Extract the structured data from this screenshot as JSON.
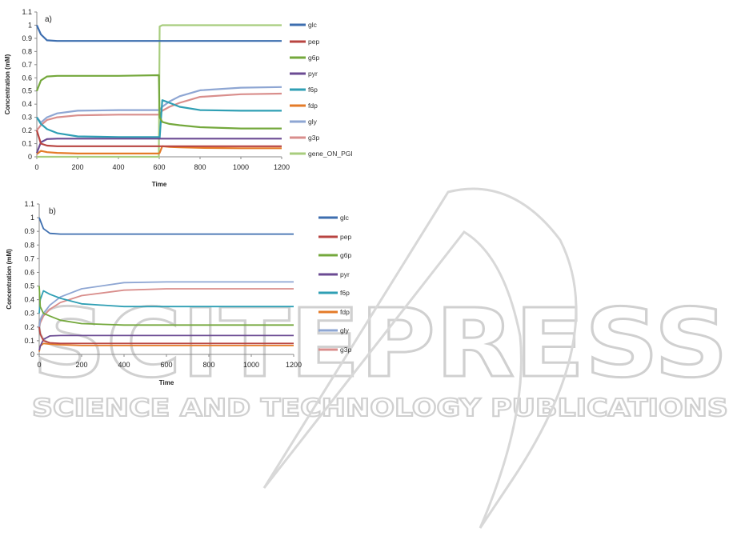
{
  "watermark": {
    "brand": "SCITEPRESS",
    "tagline": "SCIENCE AND TECHNOLOGY PUBLICATIONS"
  },
  "chart_data": [
    {
      "type": "line",
      "panel_label": "a)",
      "xlabel": "Time",
      "ylabel": "Concentration (mM)",
      "xlim": [
        0,
        1200
      ],
      "ylim": [
        0,
        1.1
      ],
      "xticks": [
        0,
        200,
        400,
        600,
        800,
        1000,
        1200
      ],
      "yticks": [
        0,
        0.1,
        0.2,
        0.3,
        0.4,
        0.5,
        0.6,
        0.7,
        0.8,
        0.9,
        1,
        1.1
      ],
      "grid": false,
      "legend_position": "right",
      "x": [
        0,
        20,
        50,
        100,
        200,
        400,
        598,
        602,
        615,
        650,
        700,
        800,
        1000,
        1200
      ],
      "series": [
        {
          "name": "glc",
          "color": "#3d6eaf",
          "values": [
            1,
            0.93,
            0.885,
            0.88,
            0.88,
            0.88,
            0.88,
            0.88,
            0.88,
            0.88,
            0.88,
            0.88,
            0.88,
            0.88
          ]
        },
        {
          "name": "pep",
          "color": "#b84441",
          "values": [
            0.2,
            0.1,
            0.085,
            0.08,
            0.08,
            0.08,
            0.08,
            0.08,
            0.08,
            0.08,
            0.08,
            0.08,
            0.08,
            0.08
          ]
        },
        {
          "name": "g6p",
          "color": "#74a83c",
          "values": [
            0.5,
            0.58,
            0.61,
            0.615,
            0.615,
            0.615,
            0.62,
            0.3,
            0.265,
            0.25,
            0.24,
            0.225,
            0.215,
            0.215
          ]
        },
        {
          "name": "pyr",
          "color": "#6b4b93",
          "values": [
            0.03,
            0.11,
            0.135,
            0.138,
            0.138,
            0.138,
            0.138,
            0.138,
            0.138,
            0.138,
            0.138,
            0.138,
            0.138,
            0.138
          ]
        },
        {
          "name": "f6p",
          "color": "#2f9fb4",
          "values": [
            0.3,
            0.25,
            0.21,
            0.18,
            0.155,
            0.15,
            0.15,
            0.14,
            0.43,
            0.41,
            0.38,
            0.355,
            0.35,
            0.35
          ]
        },
        {
          "name": "fdp",
          "color": "#e47b28",
          "values": [
            0.02,
            0.045,
            0.035,
            0.03,
            0.025,
            0.025,
            0.025,
            0.03,
            0.08,
            0.075,
            0.072,
            0.068,
            0.065,
            0.065
          ]
        },
        {
          "name": "gly",
          "color": "#8ea6d3",
          "values": [
            0.3,
            0.26,
            0.3,
            0.33,
            0.35,
            0.355,
            0.355,
            0.355,
            0.38,
            0.42,
            0.46,
            0.505,
            0.525,
            0.53
          ]
        },
        {
          "name": "g3p",
          "color": "#d98e8c",
          "values": [
            0.2,
            0.24,
            0.28,
            0.3,
            0.315,
            0.32,
            0.32,
            0.32,
            0.35,
            0.38,
            0.41,
            0.455,
            0.475,
            0.48
          ]
        },
        {
          "name": "gene_ON_PGI",
          "color": "#a8cd7e",
          "values": [
            0,
            0,
            0,
            0,
            0,
            0,
            0,
            0.99,
            1,
            1,
            1,
            1,
            1,
            1
          ]
        }
      ]
    },
    {
      "type": "line",
      "panel_label": "b)",
      "xlabel": "Time",
      "ylabel": "Concentration (mM)",
      "xlim": [
        0,
        1200
      ],
      "ylim": [
        0,
        1.1
      ],
      "xticks": [
        0,
        200,
        400,
        600,
        800,
        1000,
        1200
      ],
      "yticks": [
        0,
        0.1,
        0.2,
        0.3,
        0.4,
        0.5,
        0.6,
        0.7,
        0.8,
        0.9,
        1,
        1.1
      ],
      "grid": false,
      "legend_position": "right",
      "x": [
        0,
        5,
        20,
        50,
        100,
        200,
        400,
        600,
        800,
        1000,
        1200
      ],
      "series": [
        {
          "name": "glc",
          "color": "#3d6eaf",
          "values": [
            1,
            0.98,
            0.92,
            0.885,
            0.88,
            0.88,
            0.88,
            0.88,
            0.88,
            0.88,
            0.88
          ]
        },
        {
          "name": "pep",
          "color": "#b84441",
          "values": [
            0.2,
            0.15,
            0.1,
            0.085,
            0.08,
            0.08,
            0.08,
            0.08,
            0.08,
            0.08,
            0.08
          ]
        },
        {
          "name": "g6p",
          "color": "#74a83c",
          "values": [
            0.5,
            0.35,
            0.3,
            0.28,
            0.25,
            0.225,
            0.215,
            0.215,
            0.215,
            0.215,
            0.215
          ]
        },
        {
          "name": "pyr",
          "color": "#6b4b93",
          "values": [
            0.03,
            0.06,
            0.11,
            0.135,
            0.138,
            0.138,
            0.138,
            0.138,
            0.138,
            0.138,
            0.138
          ]
        },
        {
          "name": "f6p",
          "color": "#2f9fb4",
          "values": [
            0.3,
            0.4,
            0.465,
            0.44,
            0.41,
            0.37,
            0.35,
            0.35,
            0.35,
            0.35,
            0.35
          ]
        },
        {
          "name": "fdp",
          "color": "#e47b28",
          "values": [
            0.02,
            0.06,
            0.08,
            0.075,
            0.07,
            0.065,
            0.065,
            0.065,
            0.065,
            0.065,
            0.065
          ]
        },
        {
          "name": "gly",
          "color": "#8ea6d3",
          "values": [
            0.2,
            0.25,
            0.3,
            0.36,
            0.42,
            0.48,
            0.525,
            0.53,
            0.53,
            0.53,
            0.53
          ]
        },
        {
          "name": "g3p",
          "color": "#d98e8c",
          "values": [
            0.2,
            0.23,
            0.28,
            0.33,
            0.38,
            0.43,
            0.47,
            0.48,
            0.48,
            0.48,
            0.48
          ]
        }
      ]
    }
  ]
}
